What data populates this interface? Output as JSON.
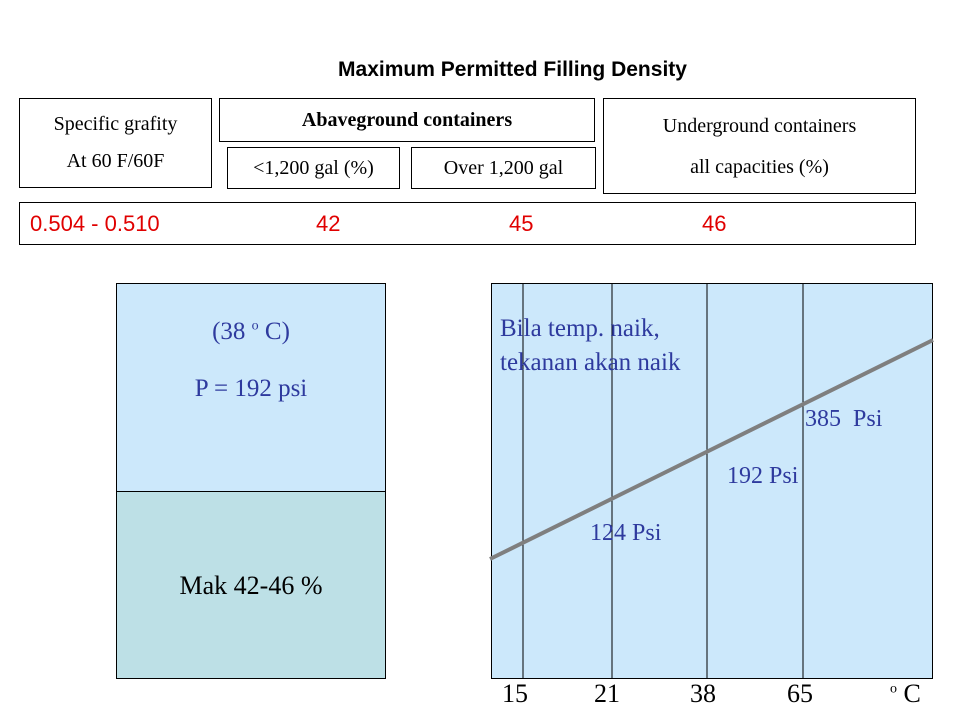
{
  "title": "Maximum Permitted Filling Density",
  "table": {
    "specific_gravity": {
      "line1": "Specific grafity",
      "line2": "At 60 F/60F"
    },
    "aboveground": {
      "header": "Abaveground containers",
      "small": "<1,200 gal (%)",
      "large": "Over 1,200 gal"
    },
    "underground": {
      "line1": "Underground containers",
      "line2": "all capacities (%)"
    },
    "row": {
      "range": "0.504 - 0.510",
      "v1": "42",
      "v2": "45",
      "v3": "46"
    }
  },
  "tank": {
    "temp_prefix": "(38 ",
    "temp_sup": "o",
    "temp_suffix": " C)",
    "pressure": "P = 192 psi",
    "liquid": "Mak 42-46 %"
  },
  "chart_data": {
    "type": "line",
    "title": "",
    "annotation_line1": "Bila temp. naik,",
    "annotation_line2": "tekanan akan naik",
    "x_ticks": [
      "15",
      "21",
      "38",
      "65"
    ],
    "x_unit_sup": "o",
    "x_unit": " C",
    "point_labels": [
      "124 Psi",
      "192 Psi",
      "385  Psi"
    ],
    "colors": {
      "line": "#7f7f7f",
      "background": "#cce8fb",
      "text": "#2e3a9e"
    }
  }
}
